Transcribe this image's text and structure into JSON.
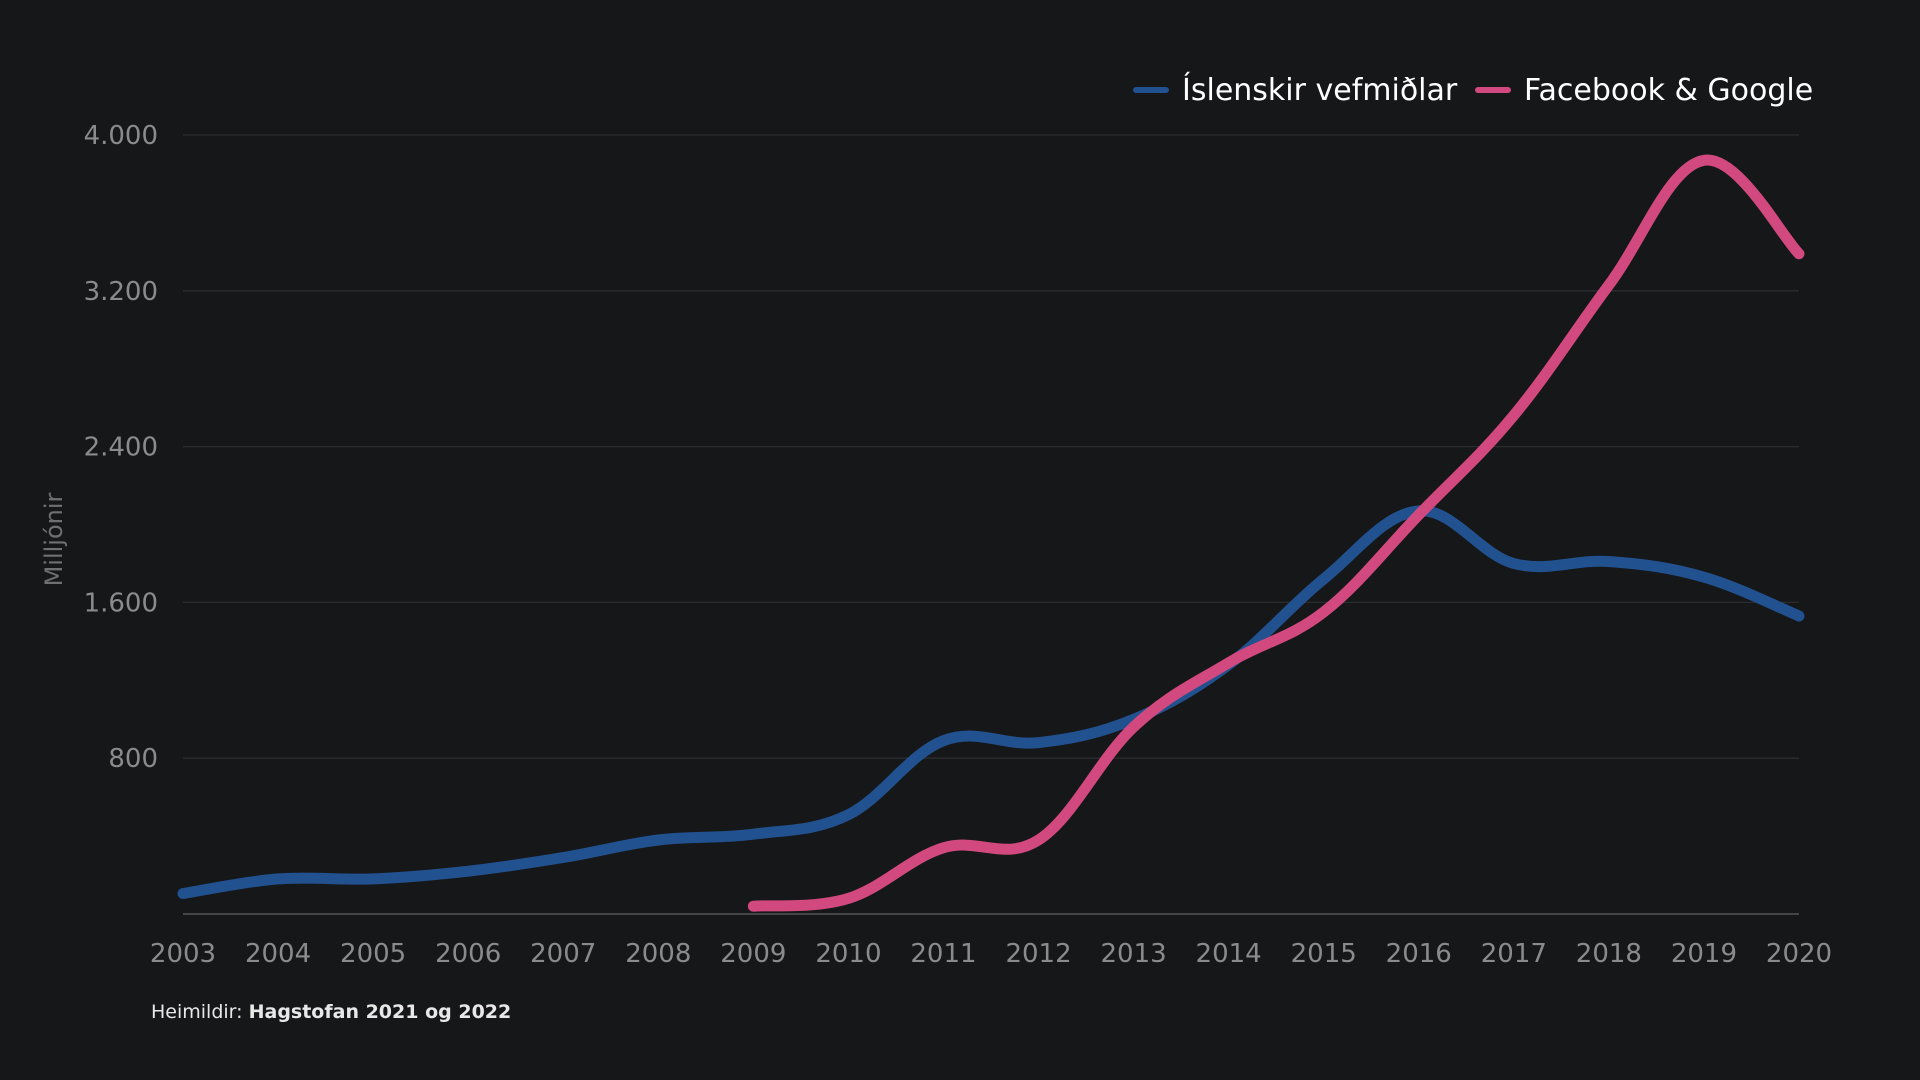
{
  "source": {
    "prefix": "Heimildir:",
    "name": "Hagstofan 2021 og 2022"
  },
  "chart_data": {
    "type": "line",
    "title": "",
    "xlabel": "",
    "ylabel": "Milljónir",
    "x": [
      "2003",
      "2004",
      "2005",
      "2006",
      "2007",
      "2008",
      "2009",
      "2010",
      "2011",
      "2012",
      "2013",
      "2014",
      "2015",
      "2016",
      "2017",
      "2018",
      "2019",
      "2020"
    ],
    "ylim": [
      0,
      4000
    ],
    "yticks": [
      800,
      1600,
      2400,
      3200,
      4000
    ],
    "ytick_labels": [
      "800",
      "1.600",
      "2.400",
      "3.200",
      "4.000"
    ],
    "grid": true,
    "legend_position": "top-right",
    "series": [
      {
        "name": "Íslenskir vefmiðlar",
        "color": "#22518f",
        "values": [
          105,
          180,
          180,
          220,
          290,
          380,
          410,
          510,
          890,
          880,
          1000,
          1280,
          1720,
          2070,
          1800,
          1810,
          1730,
          1530
        ]
      },
      {
        "name": "Facebook & Google",
        "color": "#d1497e",
        "values": [
          null,
          null,
          null,
          null,
          null,
          null,
          40,
          80,
          340,
          380,
          960,
          1290,
          1550,
          2050,
          2560,
          3230,
          3870,
          3390
        ]
      }
    ]
  }
}
